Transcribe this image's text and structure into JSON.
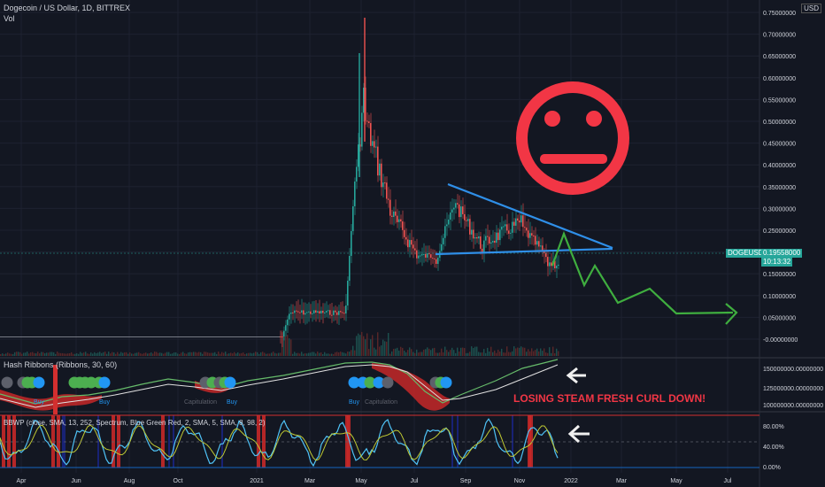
{
  "header": {
    "symbol_line": "Dogecoin / US Dollar, 1D, BITTREX",
    "vol_label": "Vol",
    "currency": "USD"
  },
  "price_axis": {
    "labels": [
      "0.75000000",
      "0.70000000",
      "0.65000000",
      "0.60000000",
      "0.55000000",
      "0.50000000",
      "0.45000000",
      "0.40000000",
      "0.35000000",
      "0.30000000",
      "0.25000000",
      "0.20000000",
      "0.15000000",
      "0.10000000",
      "0.05000000",
      "-0.00000000"
    ]
  },
  "ticker": {
    "name": "DOGEUSD",
    "price": "0.19558000",
    "countdown": "10:13:32"
  },
  "hash_ribbons": {
    "label": "Hash Ribbons (Ribbons, 30, 60)",
    "axis": [
      "150000000.00000000",
      "125000000.00000000",
      "100000000.00000000"
    ],
    "buy_labels": [
      "Buy",
      "Buy",
      "Buy",
      "Buy"
    ],
    "capitulation_labels": [
      "Capitulation",
      "Capitulation"
    ]
  },
  "annotation": {
    "text": "LOSING STEAM FRESH CURL DOWN!",
    "color": "#f23645"
  },
  "bbwp": {
    "label": "BBWP (close, SMA, 13, 252, Spectrum, Blue Green Red, 2, SMA, 5, SMA, 8, 98, 2)",
    "axis": [
      "80.00%",
      "40.00%",
      "0.00%"
    ]
  },
  "time_axis": {
    "labels": [
      "Apr",
      "Jun",
      "Aug",
      "Oct",
      "2021",
      "Mar",
      "May",
      "Jul",
      "Sep",
      "Nov",
      "2022",
      "Mar",
      "May",
      "Jul"
    ]
  },
  "colors": {
    "background": "#131722",
    "trendline": "#2f8fe8",
    "face": "#f23645",
    "projection": "#4caf50",
    "price_badge": "#26a69a"
  },
  "icons": [
    "neutral-face-icon",
    "left-arrow-icon"
  ]
}
